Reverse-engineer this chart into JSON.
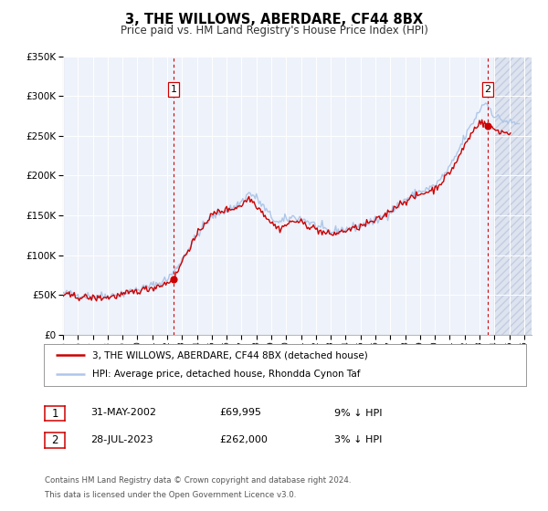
{
  "title": "3, THE WILLOWS, ABERDARE, CF44 8BX",
  "subtitle": "Price paid vs. HM Land Registry's House Price Index (HPI)",
  "legend_line1": "3, THE WILLOWS, ABERDARE, CF44 8BX (detached house)",
  "legend_line2": "HPI: Average price, detached house, Rhondda Cynon Taf",
  "sale1_date": "31-MAY-2002",
  "sale1_price": "£69,995",
  "sale1_hpi": "9% ↓ HPI",
  "sale1_year": 2002.42,
  "sale1_value": 69995,
  "sale2_date": "28-JUL-2023",
  "sale2_price": "£262,000",
  "sale2_hpi": "3% ↓ HPI",
  "sale2_year": 2023.56,
  "sale2_value": 262000,
  "footer1": "Contains HM Land Registry data © Crown copyright and database right 2024.",
  "footer2": "This data is licensed under the Open Government Licence v3.0.",
  "hpi_color": "#aec6e8",
  "price_color": "#cc0000",
  "vline_color": "#cc0000",
  "ylim": [
    0,
    350000
  ],
  "xlim_start": 1995.0,
  "xlim_end": 2026.5,
  "hatch_start": 2024.0,
  "plot_bg_color": "#eef2fa",
  "grid_color": "#ffffff"
}
